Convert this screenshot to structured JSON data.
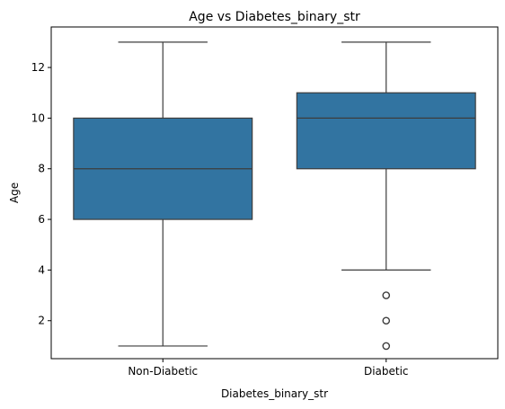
{
  "chart_data": {
    "type": "box",
    "title": "Age vs Diabetes_binary_str",
    "xlabel": "Diabetes_binary_str",
    "ylabel": "Age",
    "ylim": [
      0.5,
      13.6
    ],
    "yticks": [
      2,
      4,
      6,
      8,
      10,
      12
    ],
    "grid": false,
    "box_color": "#3274a1",
    "line_color": "#3d3d3d",
    "categories": [
      "Non-Diabetic",
      "Diabetic"
    ],
    "boxes": [
      {
        "category": "Non-Diabetic",
        "whisker_low": 1,
        "q1": 6,
        "median": 8,
        "q3": 10,
        "whisker_high": 13,
        "outliers": []
      },
      {
        "category": "Diabetic",
        "whisker_low": 4,
        "q1": 8,
        "median": 10,
        "q3": 11,
        "whisker_high": 13,
        "outliers": [
          1,
          2,
          3
        ]
      }
    ]
  }
}
